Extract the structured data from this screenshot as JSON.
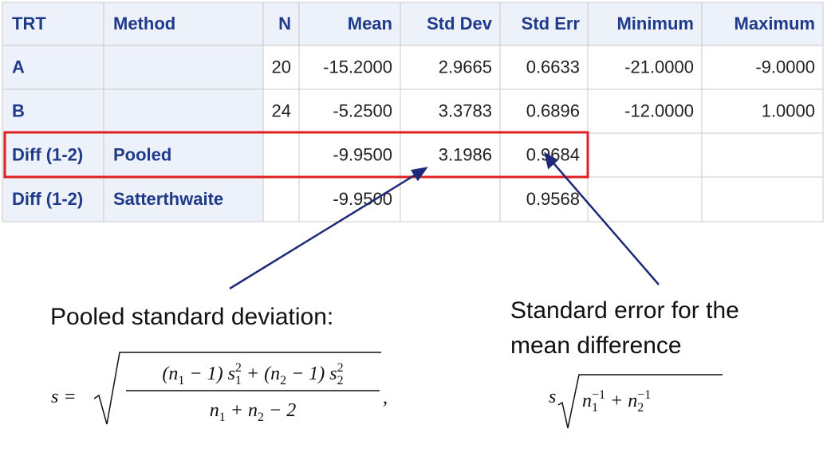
{
  "table": {
    "header": [
      "TRT",
      "Method",
      "N",
      "Mean",
      "Std Dev",
      "Std Err",
      "Minimum",
      "Maximum"
    ],
    "rows": [
      [
        "A",
        null,
        "20",
        "-15.2000",
        "2.9665",
        "0.6633",
        "-21.0000",
        "-9.0000"
      ],
      [
        "B",
        null,
        "24",
        "-5.2500",
        "3.3783",
        "0.6896",
        "-12.0000",
        "1.0000"
      ],
      [
        "Diff (1-2)",
        "Pooled",
        null,
        "-9.9500",
        "3.1986",
        "0.9684",
        null,
        null
      ],
      [
        "Diff (1-2)",
        "Satterthwaite",
        null,
        "-9.9500",
        null,
        "0.9568",
        null,
        null
      ]
    ]
  },
  "annotations": [
    {
      "lines": [
        "Pooled standard deviation:"
      ],
      "formula": {
        "lhs": [
          {
            "text": "s ="
          }
        ],
        "numerator": [
          {
            "text": "(n"
          },
          {
            "text": "1",
            "script": "sub"
          },
          {
            "text": " − 1) s"
          },
          {
            "text": "1",
            "script": "sub"
          },
          {
            "text": "2",
            "script": "sup"
          },
          {
            "text": " + (n"
          },
          {
            "text": "2",
            "script": "sub"
          },
          {
            "text": " − 1) s"
          },
          {
            "text": "2",
            "script": "sub"
          },
          {
            "text": "2",
            "script": "sup"
          }
        ],
        "denominator": [
          {
            "text": "n"
          },
          {
            "text": "1",
            "script": "sub"
          },
          {
            "text": " + n"
          },
          {
            "text": "2",
            "script": "sub"
          },
          {
            "text": " − 2"
          }
        ],
        "trail": [
          {
            "text": ","
          }
        ]
      }
    },
    {
      "lines": [
        "Standard error for the",
        "mean difference"
      ],
      "formula": {
        "lhs": [
          {
            "text": "s"
          }
        ],
        "radicand": [
          {
            "text": "n"
          },
          {
            "text": "1",
            "script": "sub"
          },
          {
            "text": "−1",
            "script": "sup"
          },
          {
            "text": " + n"
          },
          {
            "text": "2",
            "script": "sub"
          },
          {
            "text": "−1",
            "script": "sup"
          }
        ]
      }
    }
  ]
}
